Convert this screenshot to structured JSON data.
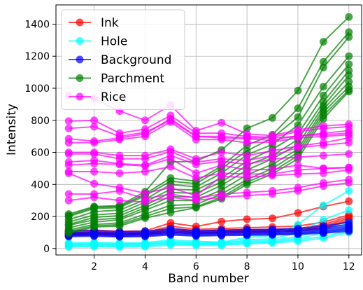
{
  "chart_data": {
    "type": "line",
    "title": "",
    "xlabel": "Band number",
    "ylabel": "Intensity",
    "xlim": [
      0.5,
      12.5
    ],
    "ylim": [
      -40,
      1520
    ],
    "xticks": [
      2,
      4,
      6,
      8,
      10,
      12
    ],
    "yticks": [
      0,
      200,
      400,
      600,
      800,
      1000,
      1200,
      1400
    ],
    "grid": true,
    "legend_position": "top-left",
    "x": [
      1,
      2,
      3,
      4,
      5,
      6,
      7,
      8,
      9,
      10,
      11,
      12
    ],
    "series": [
      {
        "name": "Ink",
        "color": "#ff0000",
        "lines": [
          [
            110,
            115,
            108,
            110,
            160,
            138,
            168,
            183,
            188,
            222,
            262,
            295
          ],
          [
            100,
            105,
            98,
            100,
            140,
            120,
            125,
            130,
            135,
            140,
            165,
            210
          ],
          [
            95,
            100,
            95,
            98,
            125,
            110,
            115,
            118,
            120,
            125,
            150,
            200
          ],
          [
            90,
            95,
            90,
            95,
            115,
            105,
            108,
            112,
            115,
            120,
            140,
            190
          ],
          [
            85,
            92,
            88,
            90,
            105,
            100,
            102,
            105,
            108,
            115,
            130,
            180
          ],
          [
            80,
            88,
            85,
            88,
            100,
            95,
            98,
            100,
            105,
            110,
            125,
            170
          ]
        ]
      },
      {
        "name": "Hole",
        "color": "#00ffff",
        "lines": [
          [
            35,
            38,
            35,
            36,
            55,
            45,
            40,
            70,
            80,
            150,
            270,
            360
          ],
          [
            30,
            32,
            30,
            32,
            45,
            40,
            38,
            55,
            60,
            100,
            180,
            240
          ],
          [
            25,
            28,
            26,
            28,
            40,
            35,
            33,
            48,
            52,
            75,
            120,
            160
          ],
          [
            20,
            23,
            22,
            24,
            35,
            30,
            30,
            42,
            45,
            65,
            95,
            130
          ],
          [
            15,
            18,
            15,
            18,
            28,
            25,
            25,
            35,
            40,
            55,
            75,
            110
          ],
          [
            10,
            12,
            10,
            12,
            22,
            20,
            20,
            30,
            35,
            45,
            65,
            100
          ]
        ]
      },
      {
        "name": "Background",
        "color": "#0000ff",
        "lines": [
          [
            110,
            112,
            105,
            108,
            125,
            112,
            115,
            118,
            120,
            125,
            140,
            165
          ],
          [
            100,
            103,
            97,
            100,
            115,
            104,
            107,
            110,
            112,
            117,
            130,
            150
          ],
          [
            95,
            97,
            92,
            95,
            108,
            98,
            101,
            104,
            106,
            110,
            122,
            140
          ],
          [
            90,
            92,
            87,
            90,
            102,
            93,
            96,
            98,
            100,
            104,
            115,
            132
          ],
          [
            85,
            87,
            82,
            85,
            96,
            88,
            91,
            93,
            95,
            99,
            108,
            124
          ],
          [
            80,
            82,
            77,
            80,
            90,
            83,
            86,
            88,
            90,
            94,
            102,
            116
          ],
          [
            75,
            77,
            73,
            75,
            85,
            78,
            81,
            83,
            85,
            89,
            96,
            108
          ]
        ]
      },
      {
        "name": "Parchment",
        "color": "#008000",
        "lines": [
          [
            215,
            262,
            268,
            355,
            540,
            545,
            615,
            750,
            815,
            985,
            1290,
            1445
          ],
          [
            205,
            258,
            262,
            340,
            440,
            420,
            515,
            645,
            710,
            875,
            1165,
            1350
          ],
          [
            200,
            250,
            255,
            330,
            420,
            405,
            500,
            610,
            690,
            820,
            1130,
            1320
          ],
          [
            180,
            230,
            240,
            305,
            400,
            385,
            470,
            585,
            650,
            770,
            1010,
            1200
          ],
          [
            165,
            210,
            220,
            290,
            370,
            365,
            440,
            545,
            620,
            715,
            955,
            1150
          ],
          [
            150,
            195,
            205,
            270,
            350,
            345,
            415,
            520,
            580,
            680,
            915,
            1110
          ],
          [
            145,
            180,
            190,
            255,
            325,
            320,
            395,
            490,
            560,
            650,
            890,
            1080
          ],
          [
            130,
            165,
            180,
            240,
            300,
            300,
            365,
            460,
            525,
            620,
            870,
            1040
          ],
          [
            115,
            150,
            160,
            215,
            270,
            275,
            340,
            430,
            500,
            600,
            850,
            1010
          ],
          [
            105,
            140,
            150,
            200,
            250,
            260,
            320,
            415,
            480,
            580,
            830,
            990
          ],
          [
            95,
            135,
            140,
            190,
            225,
            255,
            310,
            400,
            465,
            560,
            810,
            980
          ]
        ]
      },
      {
        "name": "Rice",
        "color": "#ff00ff",
        "lines": [
          [
            955,
            935,
            858,
            800,
            895,
            735,
            785,
            715,
            705,
            740,
            765,
            775
          ],
          [
            795,
            800,
            720,
            745,
            830,
            720,
            720,
            700,
            695,
            730,
            750,
            760
          ],
          [
            750,
            760,
            700,
            725,
            800,
            700,
            700,
            690,
            690,
            700,
            720,
            735
          ],
          [
            685,
            670,
            690,
            715,
            810,
            700,
            690,
            685,
            675,
            705,
            710,
            720
          ],
          [
            660,
            660,
            680,
            700,
            790,
            680,
            680,
            660,
            665,
            690,
            700,
            710
          ],
          [
            600,
            600,
            580,
            580,
            620,
            560,
            600,
            580,
            610,
            640,
            660,
            690
          ],
          [
            590,
            590,
            560,
            560,
            605,
            540,
            560,
            550,
            580,
            630,
            645,
            660
          ],
          [
            540,
            550,
            530,
            520,
            580,
            525,
            545,
            525,
            560,
            570,
            580,
            590
          ],
          [
            520,
            530,
            525,
            515,
            560,
            470,
            520,
            490,
            495,
            520,
            500,
            505
          ],
          [
            480,
            480,
            470,
            480,
            510,
            440,
            470,
            465,
            465,
            490,
            500,
            505
          ],
          [
            470,
            405,
            380,
            345,
            380,
            330,
            450,
            445,
            455,
            465,
            470,
            490
          ],
          [
            340,
            340,
            360,
            310,
            340,
            315,
            340,
            350,
            360,
            380,
            410,
            430
          ],
          [
            300,
            320,
            300,
            290,
            320,
            300,
            320,
            330,
            340,
            360,
            390,
            410
          ]
        ]
      }
    ]
  }
}
